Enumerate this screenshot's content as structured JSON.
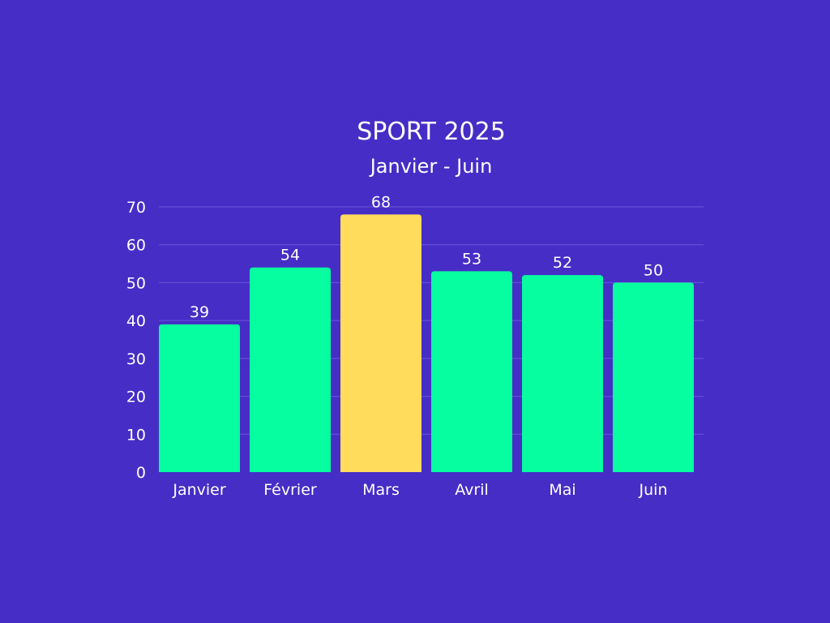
{
  "chart_data": {
    "type": "bar",
    "title": "SPORT 2025",
    "subtitle": "Janvier - Juin",
    "xlabel": "",
    "ylabel": "",
    "categories": [
      "Janvier",
      "Février",
      "Mars",
      "Avril",
      "Mai",
      "Juin"
    ],
    "values": [
      39,
      54,
      68,
      53,
      52,
      50
    ],
    "ylim": [
      0,
      70
    ],
    "yticks": [
      0,
      10,
      20,
      30,
      40,
      50,
      60,
      70
    ],
    "grid": true,
    "legend": "none",
    "highlight_index": 2,
    "colors": {
      "background": "#462dc6",
      "bar": "#06fda0",
      "bar_highlight": "#ffdc5c",
      "grid": "#6a56d8",
      "text": "#ffffff"
    }
  }
}
